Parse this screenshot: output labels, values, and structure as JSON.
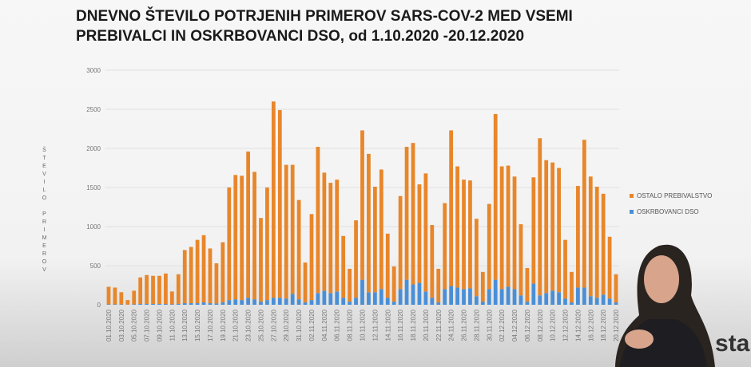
{
  "chart_data": {
    "type": "stacked-bar",
    "title": [
      "DNEVNO ŠTEVILO POTRJENIH PRIMEROV SARS-COV-2 MED VSEMI",
      "PREBIVALCI IN OSKRBOVANCI DSO, od 1.10.2020 -20.12.2020"
    ],
    "y_label": "ŠTEVILO PRIMEROV",
    "logo": "sta",
    "categories": [
      "01.10.2020",
      null,
      "03.10.2020",
      null,
      "05.10.2020",
      null,
      "07.10.2020",
      null,
      "09.10.2020",
      null,
      "11.10.2020",
      null,
      "13.10.2020",
      null,
      "15.10.2020",
      null,
      "17.10.2020",
      null,
      "19.10.2020",
      null,
      "21.10.2020",
      null,
      "23.10.2020",
      null,
      "25.10.2020",
      null,
      "27.10.2020",
      null,
      "29.10.2020",
      null,
      "31.10.2020",
      null,
      "02.11.2020",
      null,
      "04.11.2020",
      null,
      "06.11.2020",
      null,
      "08.11.2020",
      null,
      "10.11.2020",
      null,
      "12.11.2020",
      null,
      "14.11.2020",
      null,
      "16.11.2020",
      null,
      "18.11.2020",
      null,
      "20.11.2020",
      null,
      "22.11.2020",
      null,
      "24.11.2020",
      null,
      "26.11.2020",
      null,
      "28.11.2020",
      null,
      "30.11.2020",
      null,
      "02.12.2020",
      null,
      "04.12.2020",
      null,
      "06.12.2020",
      null,
      "08.12.2020",
      null,
      "10.12.2020",
      null,
      "12.12.2020",
      null,
      "14.12.2020",
      null,
      "16.12.2020",
      null,
      "18.12.2020",
      null,
      "20.12.2020"
    ],
    "series": [
      {
        "name": "OSTALO PREBIVALSTVO",
        "color": "#e8862a",
        "values": [
          225,
          215,
          155,
          58,
          175,
          340,
          370,
          360,
          360,
          390,
          165,
          380,
          680,
          720,
          810,
          860,
          700,
          515,
          770,
          1440,
          1590,
          1590,
          1870,
          1630,
          1070,
          1440,
          2510,
          2400,
          1710,
          1650,
          1270,
          510,
          1100,
          1870,
          1510,
          1410,
          1430,
          790,
          420,
          990,
          1910,
          1770,
          1350,
          1530,
          820,
          450,
          1190,
          1700,
          1810,
          1260,
          1510,
          930,
          430,
          1100,
          1990,
          1550,
          1400,
          1380,
          990,
          380,
          1090,
          2120,
          1570,
          1550,
          1440,
          910,
          430,
          1360,
          2010,
          1700,
          1640,
          1590,
          750,
          390,
          1300,
          1890,
          1530,
          1420,
          1290,
          790,
          360
        ]
      },
      {
        "name": "OSKRBOVANCI DSO",
        "color": "#4a8fd6",
        "values": [
          5,
          5,
          5,
          2,
          5,
          10,
          10,
          10,
          10,
          10,
          5,
          10,
          20,
          20,
          20,
          30,
          20,
          15,
          30,
          60,
          70,
          60,
          90,
          70,
          40,
          60,
          90,
          90,
          80,
          140,
          70,
          30,
          60,
          150,
          180,
          150,
          170,
          90,
          40,
          90,
          320,
          160,
          160,
          200,
          90,
          40,
          200,
          320,
          260,
          280,
          170,
          90,
          30,
          200,
          240,
          220,
          200,
          210,
          110,
          40,
          200,
          320,
          200,
          230,
          200,
          120,
          40,
          270,
          120,
          150,
          180,
          160,
          80,
          30,
          220,
          220,
          110,
          90,
          130,
          80,
          30
        ]
      }
    ],
    "ylim": [
      0,
      3000
    ],
    "yticks": [
      0,
      500,
      1000,
      1500,
      2000,
      2500,
      3000
    ],
    "grid": true,
    "legend": "right"
  }
}
